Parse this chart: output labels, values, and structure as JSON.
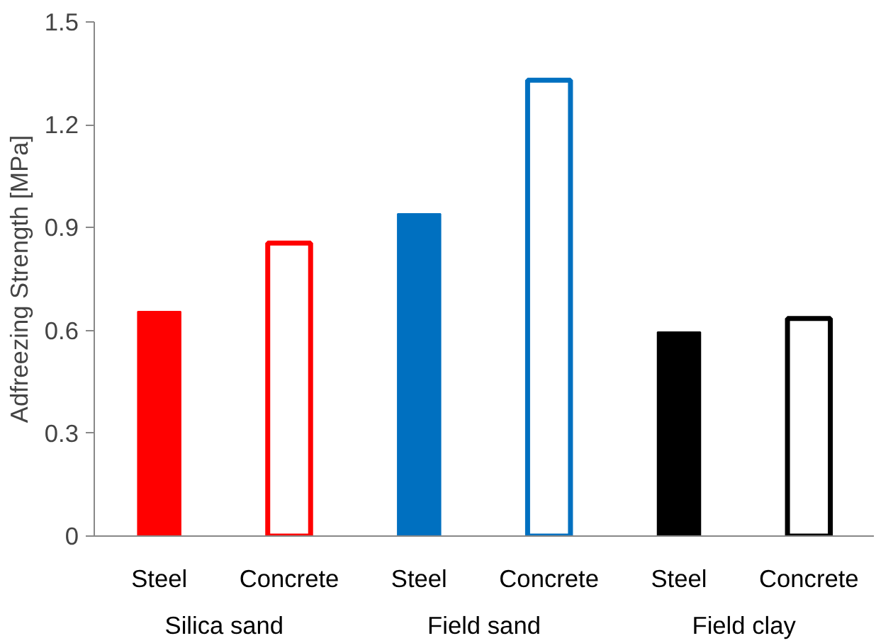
{
  "chart_data": {
    "type": "bar",
    "ylabel": "Adfreezing Strength [MPa]",
    "categories": [
      "Steel",
      "Concrete",
      "Steel",
      "Concrete",
      "Steel",
      "Concrete"
    ],
    "values": [
      0.655,
      0.855,
      0.94,
      1.33,
      0.595,
      0.635
    ],
    "colors": [
      "#ff0000",
      "#ff0000",
      "#0070c0",
      "#0070c0",
      "#000000",
      "#000000"
    ],
    "annotations": [
      "Silica sand",
      "Field sand",
      "Field clay"
    ],
    "ylim": [
      0,
      1.5
    ],
    "yticks": [
      0,
      0.3,
      0.6,
      0.9,
      1.2,
      1.5
    ],
    "grid": false
  }
}
